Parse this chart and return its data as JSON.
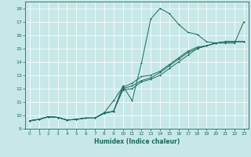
{
  "xlabel": "Humidex (Indice chaleur)",
  "xlim": [
    -0.5,
    23.5
  ],
  "ylim": [
    9,
    18.5
  ],
  "xticks": [
    0,
    1,
    2,
    3,
    4,
    5,
    6,
    7,
    8,
    9,
    10,
    11,
    12,
    13,
    14,
    15,
    16,
    17,
    18,
    19,
    20,
    21,
    22,
    23
  ],
  "yticks": [
    9,
    10,
    11,
    12,
    13,
    14,
    15,
    16,
    17,
    18
  ],
  "bg_color": "#c8e8e8",
  "line_color": "#1a6b5a",
  "grid_color": "#ffffff",
  "line1_x": [
    0,
    1,
    2,
    3,
    4,
    5,
    6,
    7,
    8,
    9,
    10,
    11,
    12,
    13,
    14,
    15,
    16,
    17,
    18,
    19,
    20,
    21,
    22,
    23
  ],
  "line1_y": [
    9.6,
    9.7,
    9.9,
    9.85,
    9.65,
    9.7,
    9.8,
    9.8,
    10.15,
    10.3,
    12.2,
    11.1,
    13.9,
    17.2,
    18.0,
    17.6,
    16.8,
    16.2,
    16.05,
    15.5,
    15.4,
    15.4,
    15.4,
    17.0
  ],
  "line2_x": [
    0,
    1,
    2,
    3,
    4,
    5,
    6,
    7,
    8,
    9,
    10,
    11,
    12,
    13,
    14,
    15,
    16,
    17,
    18,
    19,
    20,
    21,
    22,
    23
  ],
  "line2_y": [
    9.6,
    9.7,
    9.9,
    9.85,
    9.65,
    9.7,
    9.8,
    9.8,
    10.15,
    10.3,
    11.9,
    12.0,
    12.5,
    12.7,
    13.0,
    13.5,
    14.0,
    14.5,
    15.0,
    15.2,
    15.4,
    15.5,
    15.5,
    15.5
  ],
  "line3_x": [
    0,
    1,
    2,
    3,
    4,
    5,
    6,
    7,
    8,
    9,
    10,
    11,
    12,
    13,
    14,
    15,
    16,
    17,
    18,
    19,
    20,
    21,
    22,
    23
  ],
  "line3_y": [
    9.6,
    9.7,
    9.9,
    9.85,
    9.65,
    9.7,
    9.8,
    9.8,
    10.2,
    10.3,
    12.0,
    12.2,
    12.6,
    12.8,
    13.2,
    13.7,
    14.2,
    14.7,
    15.0,
    15.2,
    15.4,
    15.5,
    15.5,
    15.5
  ],
  "line4_x": [
    0,
    1,
    2,
    3,
    4,
    5,
    6,
    7,
    8,
    9,
    10,
    11,
    12,
    13,
    14,
    15,
    16,
    17,
    18,
    19,
    20,
    21,
    22,
    23
  ],
  "line4_y": [
    9.6,
    9.7,
    9.9,
    9.85,
    9.65,
    9.7,
    9.8,
    9.8,
    10.2,
    11.1,
    12.1,
    12.4,
    12.9,
    13.0,
    13.3,
    13.8,
    14.3,
    14.8,
    15.1,
    15.2,
    15.4,
    15.5,
    15.5,
    15.5
  ]
}
